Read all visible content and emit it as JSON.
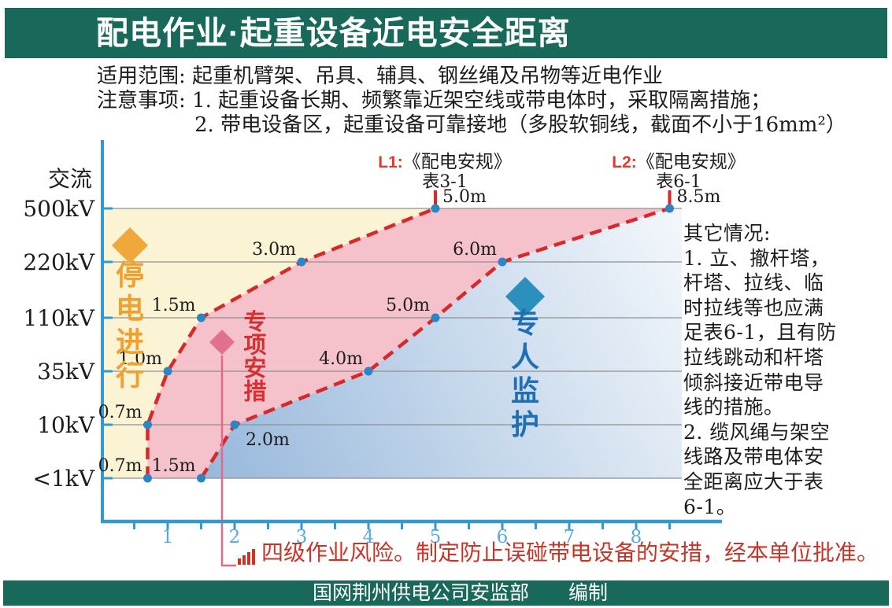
{
  "header": {
    "title": "配电作业·起重设备近电安全距离",
    "bg_color": "#19695B"
  },
  "notes": {
    "line1": "适用范围: 起重机臂架、吊具、辅具、钢丝绳及吊物等近电作业",
    "line2": "注意事项: 1. 起重设备长期、频繁靠近架空线或带电体时，采取隔离措施；",
    "line3": "2. 带电设备区，起重设备可靠接地（多股软铜线，截面不小于16mm²）"
  },
  "chart_data": {
    "type": "line",
    "y_axis": {
      "title": "交流",
      "categories": [
        "500kV",
        "220kV",
        "110kV",
        "35kV",
        "10kV",
        "<1kV"
      ]
    },
    "x_axis": {
      "tick_labels": [
        "1",
        "2",
        "3",
        "4",
        "5",
        "6",
        "7",
        "8"
      ],
      "unit": "m",
      "range": [
        0,
        9.3
      ]
    },
    "series": [
      {
        "name": "L1",
        "standard": "《配电安规》",
        "table": "表3-1",
        "color": "#D8282A",
        "points": [
          {
            "voltage": "<1kV",
            "distance": 0.7,
            "label": "0.7m"
          },
          {
            "voltage": "10kV",
            "distance": 0.7,
            "label": "0.7m"
          },
          {
            "voltage": "35kV",
            "distance": 1.0,
            "label": "1.0m"
          },
          {
            "voltage": "110kV",
            "distance": 1.5,
            "label": "1.5m"
          },
          {
            "voltage": "220kV",
            "distance": 3.0,
            "label": "3.0m"
          },
          {
            "voltage": "500kV",
            "distance": 5.0,
            "label": "5.0m"
          }
        ]
      },
      {
        "name": "L2",
        "standard": "《配电安规》",
        "table": "表6-1",
        "color": "#D8282A",
        "points": [
          {
            "voltage": "<1kV",
            "distance": 1.5,
            "label": "1.5m"
          },
          {
            "voltage": "10kV",
            "distance": 2.0,
            "label": "2.0m"
          },
          {
            "voltage": "35kV",
            "distance": 4.0,
            "label": "4.0m"
          },
          {
            "voltage": "110kV",
            "distance": 5.0,
            "label": "5.0m"
          },
          {
            "voltage": "220kV",
            "distance": 6.0,
            "label": "6.0m"
          },
          {
            "voltage": "500kV",
            "distance": 8.5,
            "label": "8.5m"
          }
        ]
      }
    ],
    "regions": [
      {
        "label": "停电进行",
        "fill": "#FBF4D4",
        "text_color": "#F2A02D",
        "diamond_color": "#F0A83A"
      },
      {
        "label": "专项安措",
        "fill": "#F5C2CB",
        "text_color": "#D62F2F",
        "diamond_color": "#E2718D"
      },
      {
        "label": "专人监护",
        "fill": "gradient",
        "gradient": [
          "#96B7DB",
          "#F3F7FB"
        ],
        "text_color": "#1F6FB5",
        "diamond_color": "#2B90BC"
      }
    ],
    "axis_color": "#2E9BD6",
    "tick_label_color": "#58A9DC",
    "grid_color": "#909090",
    "dot_color": "#2B86C5",
    "connector_color": "#E06B88",
    "legend_position": "top"
  },
  "side_note": {
    "lines": [
      "其它情况:",
      "1. 立、撤杆塔，",
      "杆塔、拉线、临",
      "时拉线等也应满",
      "足表6-1，且有防",
      "拉线跳动和杆塔",
      "倾斜接近带电导",
      "线的措施。",
      "2. 缆风绳与架空",
      "线路及带电体安",
      "全距离应大于表",
      "6-1。"
    ]
  },
  "risk": {
    "text": "四级作业风险。制定防止误碰带电设备的安措，经本单位批准。"
  },
  "footer": {
    "text": "国网荆州供电公司安监部　　编制"
  }
}
